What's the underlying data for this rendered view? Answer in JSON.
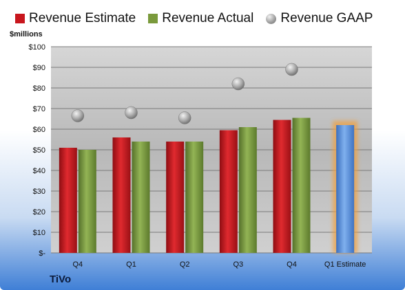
{
  "unit_label": "$millions",
  "company": "TiVo",
  "colors": {
    "estimate": "#c8161d",
    "actual": "#7a9a3c",
    "gaap": "#a8a8a8",
    "forecast": "#5b8fd6",
    "forecast_glow": "#f0a040"
  },
  "chart_data": {
    "type": "bar",
    "categories": [
      "Q4",
      "Q1",
      "Q2",
      "Q3",
      "Q4",
      "Q1 Estimate"
    ],
    "series": [
      {
        "name": "Revenue Estimate",
        "values": [
          51,
          56,
          54,
          59.5,
          64.5,
          null
        ]
      },
      {
        "name": "Revenue Actual",
        "values": [
          50,
          54,
          54,
          61,
          65.5,
          null
        ]
      },
      {
        "name": "Revenue GAAP",
        "values": [
          66.5,
          68,
          65.5,
          82,
          89,
          null
        ]
      },
      {
        "name": "",
        "values": [
          null,
          null,
          null,
          null,
          null,
          62
        ]
      }
    ],
    "ylim": [
      0,
      100
    ],
    "yticks": [
      "$-",
      "$10",
      "$20",
      "$30",
      "$40",
      "$50",
      "$60",
      "$70",
      "$80",
      "$90",
      "$100"
    ],
    "grid": true,
    "legend": "top"
  }
}
